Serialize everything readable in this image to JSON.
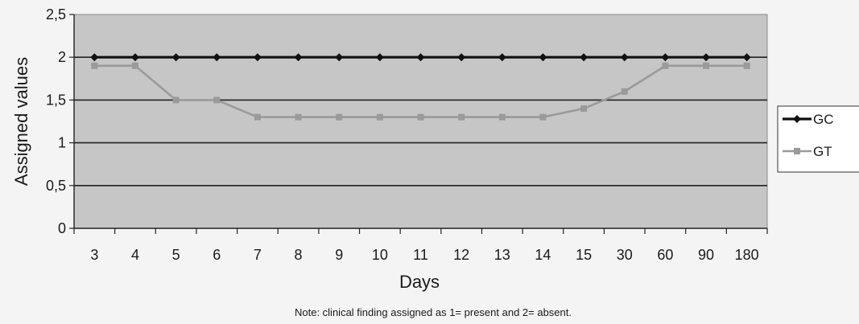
{
  "chart_data": {
    "type": "line",
    "title": "",
    "xlabel": "Days",
    "ylabel": "Assigned values",
    "note": "Note: clinical finding assigned as 1= present and 2= absent.",
    "categories": [
      "3",
      "4",
      "5",
      "6",
      "7",
      "8",
      "9",
      "10",
      "11",
      "12",
      "13",
      "14",
      "15",
      "30",
      "60",
      "90",
      "180"
    ],
    "ylim": [
      0,
      2.5
    ],
    "yticks": [
      "0",
      "0,5",
      "1",
      "1,5",
      "2",
      "2,5"
    ],
    "grid": true,
    "legend_position": "right",
    "series": [
      {
        "name": "GC",
        "color": "#111111",
        "marker": "diamond",
        "values": [
          2,
          2,
          2,
          2,
          2,
          2,
          2,
          2,
          2,
          2,
          2,
          2,
          2,
          2,
          2,
          2,
          2
        ]
      },
      {
        "name": "GT",
        "color": "#9a9a9a",
        "marker": "square",
        "values": [
          1.9,
          1.9,
          1.5,
          1.5,
          1.3,
          1.3,
          1.3,
          1.3,
          1.3,
          1.3,
          1.3,
          1.3,
          1.4,
          1.6,
          1.9,
          1.9,
          1.9
        ]
      }
    ],
    "plot_background": "#c6c6c6"
  }
}
